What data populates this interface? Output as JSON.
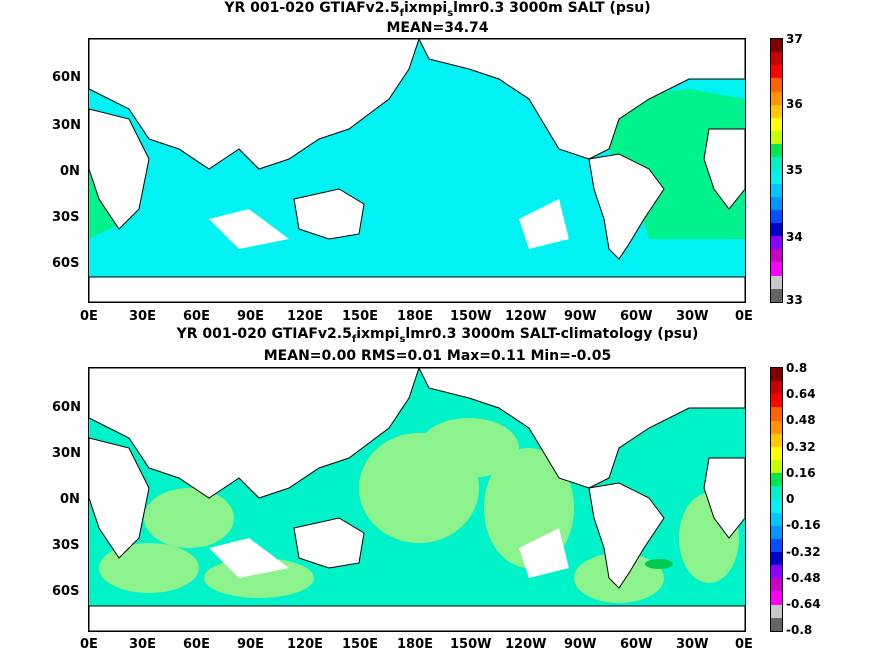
{
  "top": {
    "title_prefix": "YR 001-020 GTIAFv2.5",
    "title_sub1": "f",
    "title_mid": "ixmpi",
    "title_sub2": "s",
    "title_suffix": "lmr0.3 3000m SALT (psu)",
    "stats": "MEAN=34.74",
    "colorbar_labels": [
      "37",
      "36",
      "35",
      "34",
      "33"
    ],
    "colors": {
      "ocean": "#00f2f2",
      "land": "#ffffff",
      "high_band": "#00f28c"
    }
  },
  "bottom": {
    "title_prefix": "YR 001-020 GTIAFv2.5",
    "title_sub1": "f",
    "title_mid": "ixmpi",
    "title_sub2": "s",
    "title_suffix": "lmr0.3 3000m SALT-climatology (psu)",
    "stats": "MEAN=0.00   RMS=0.01   Max=0.11   Min=-0.05",
    "colorbar_labels": [
      "0.8",
      "0.64",
      "0.48",
      "0.32",
      "0.16",
      "0",
      "-0.16",
      "-0.32",
      "-0.48",
      "-0.64",
      "-0.8"
    ],
    "colors": {
      "ocean": "#00f2c8",
      "patch": "#8cf28c",
      "land": "#ffffff"
    }
  },
  "axes": {
    "y_labels": [
      "60N",
      "30N",
      "0N",
      "30S",
      "60S"
    ],
    "x_labels": [
      "0E",
      "30E",
      "60E",
      "90E",
      "120E",
      "150E",
      "180E",
      "150W",
      "120W",
      "90W",
      "60W",
      "30W",
      "0E"
    ]
  },
  "colorbar_colors": [
    "#800000",
    "#c80000",
    "#ff0000",
    "#ff6400",
    "#ff9600",
    "#ffc800",
    "#ffff00",
    "#c8ff00",
    "#00e650",
    "#00f2c8",
    "#00f2f2",
    "#00c8ff",
    "#0096ff",
    "#0050ff",
    "#0000c8",
    "#8c00ff",
    "#c800c8",
    "#ff00ff",
    "#c8c8c8",
    "#646464"
  ]
}
